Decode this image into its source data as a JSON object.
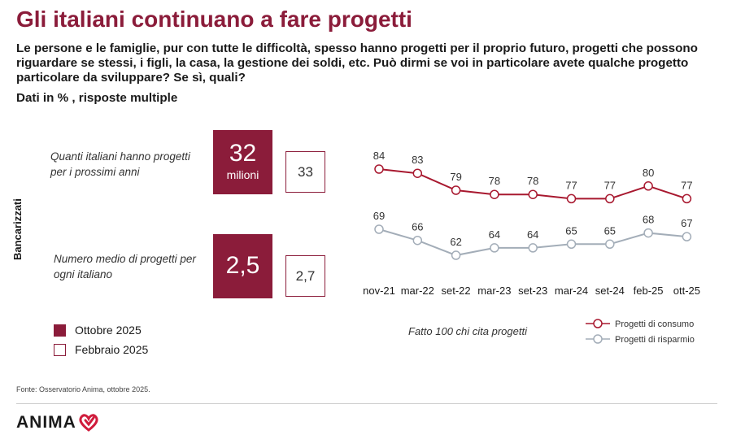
{
  "header": {
    "title": "Gli italiani continuano a fare progetti",
    "question": "Le persone e le famiglie, pur con tutte le difficoltà, spesso hanno progetti per il proprio futuro, progetti che possono riguardare se stessi, i figli, la casa, la gestione dei soldi, etc.  Può dirmi se voi in particolare avete qualche progetto particolare da sviluppare? Se sì, quali?",
    "note": "Dati in % , risposte multiple"
  },
  "side_label": "Bancarizzati",
  "kpis": [
    {
      "question": "Quanti italiani hanno progetti per i prossimi anni",
      "current_value": "32",
      "current_unit": "milioni",
      "previous_value": "33"
    },
    {
      "question": "Numero medio di progetti per ogni italiano",
      "current_value": "2,5",
      "current_unit": "",
      "previous_value": "2,7"
    }
  ],
  "period_legend": [
    {
      "label": "Ottobre 2025",
      "style": "filled"
    },
    {
      "label": "Febbraio 2025",
      "style": "outline"
    }
  ],
  "colors": {
    "brand": "#8b1c3a",
    "consumo": "#a8182f",
    "risparmio": "#a3adb8"
  },
  "chart_data": {
    "type": "line",
    "x": [
      "nov-21",
      "mar-22",
      "set-22",
      "mar-23",
      "set-23",
      "mar-24",
      "set-24",
      "feb-25",
      "ott-25"
    ],
    "series": [
      {
        "name": "Progetti di consumo",
        "values": [
          84,
          83,
          79,
          78,
          78,
          77,
          77,
          80,
          77
        ],
        "color": "#a8182f"
      },
      {
        "name": "Progetti di risparmio",
        "values": [
          69,
          66,
          62,
          64,
          64,
          65,
          65,
          68,
          67
        ],
        "color": "#a3adb8"
      }
    ],
    "data_labels": true,
    "grid": false,
    "legend_position": "bottom-right",
    "annotation": "Fatto 100 chi cita progetti"
  },
  "footer": {
    "source": "Fonte: Osservatorio Anima, ottobre 2025.",
    "logo_text": "ANIMA"
  }
}
